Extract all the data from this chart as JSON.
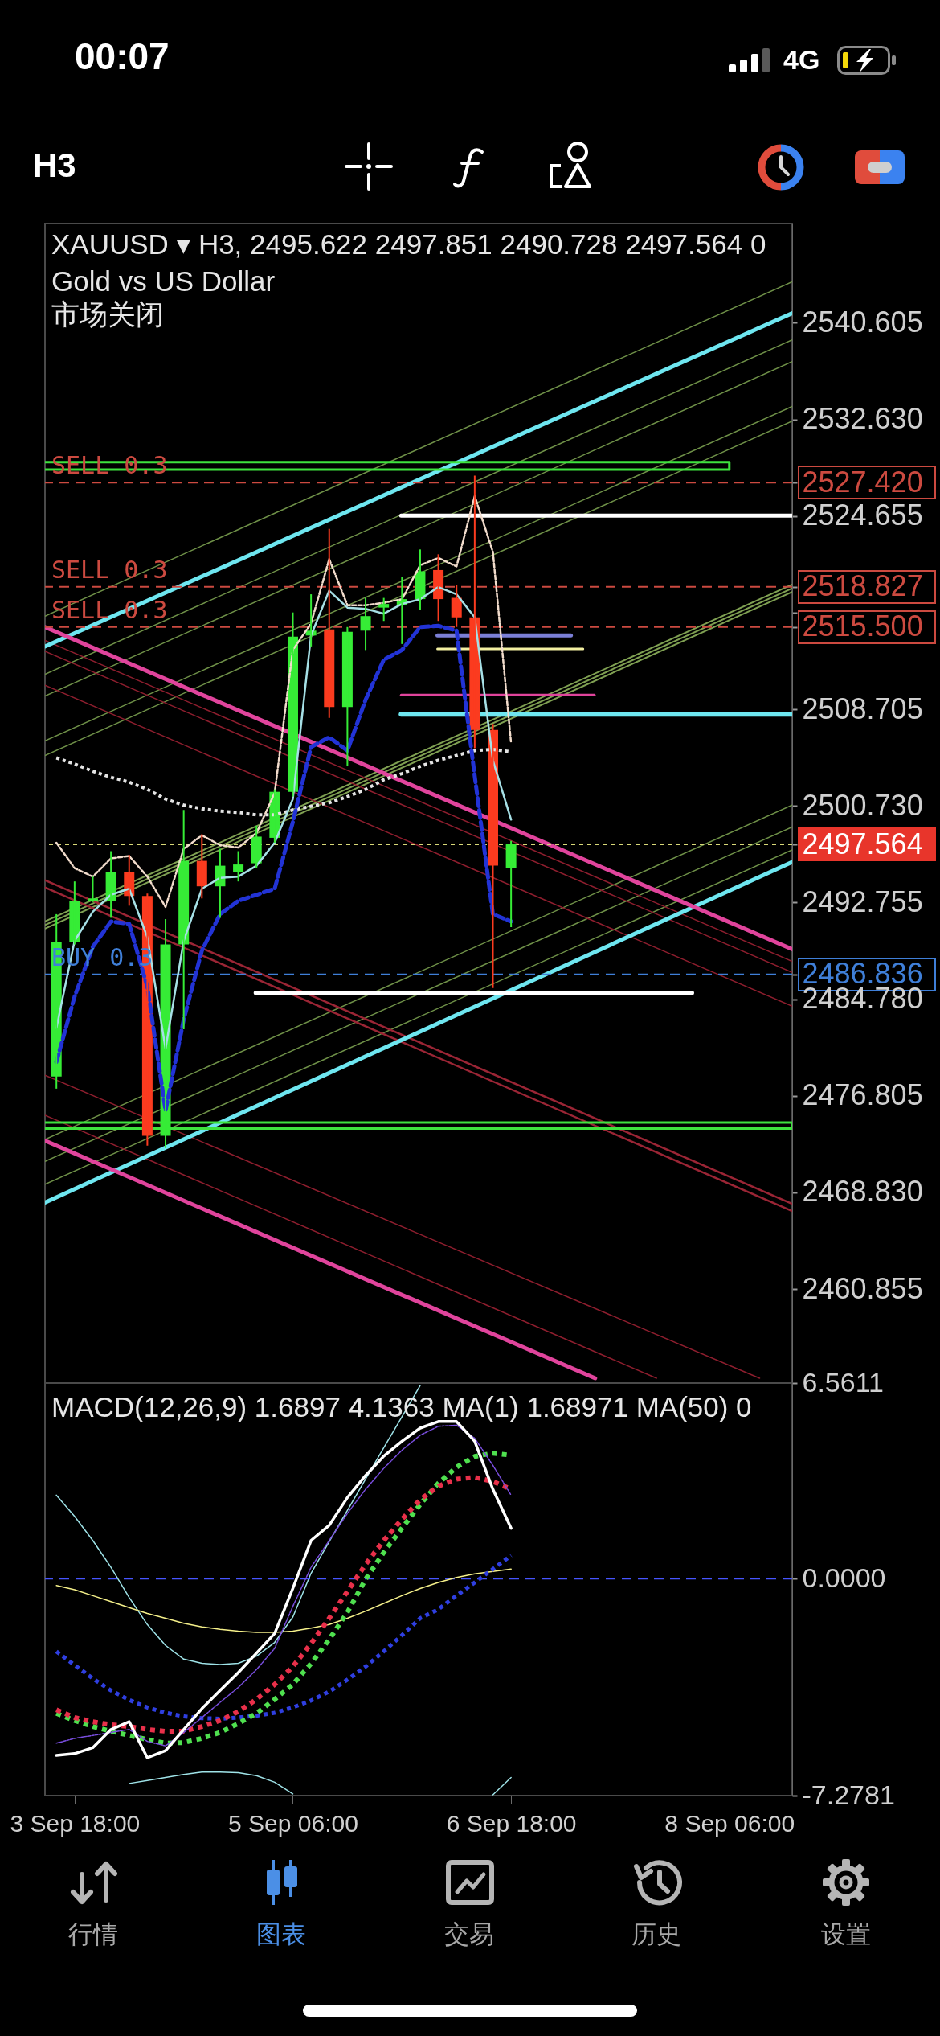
{
  "chart_data": [
    {
      "type": "candlestick",
      "title": "XAUUSD ▾ H3, 2495.622 2497.851 2490.728 2497.564 0",
      "subtitle": "Gold vs US Dollar",
      "annotations": [
        "市场关闭",
        "00:07",
        "4G",
        "H3",
        "行情",
        "图表",
        "交易",
        "历史",
        "设置"
      ],
      "x": [
        "--09-03T15:00",
        "--09-03T18:00",
        "--09-03T21:00",
        "--09-04T00:00",
        "--09-04T03:00",
        "--09-04T06:00",
        "--09-04T09:00",
        "--09-04T12:00",
        "--09-04T15:00",
        "--09-04T18:00",
        "--09-04T21:00",
        "--09-05T00:00",
        "--09-05T03:00",
        "--09-05T06:00",
        "--09-05T09:00",
        "--09-05T12:00",
        "--09-05T15:00",
        "--09-05T18:00",
        "--09-05T21:00",
        "--09-06T00:00",
        "--09-06T03:00",
        "--09-06T06:00",
        "--09-06T09:00",
        "--09-06T12:00",
        "--09-06T15:00",
        "--09-06T18:00"
      ],
      "ohlc": [
        [
          2478.4,
          2491.8,
          2477.4,
          2489.5
        ],
        [
          2489.5,
          2494.5,
          2489.3,
          2492.9
        ],
        [
          2492.9,
          2494.9,
          2492.8,
          2493.1
        ],
        [
          2492.9,
          2497.0,
          2491.5,
          2495.3
        ],
        [
          2495.3,
          2496.7,
          2492.5,
          2493.3
        ],
        [
          2493.3,
          2493.5,
          2472.7,
          2473.5
        ],
        [
          2473.5,
          2491.4,
          2472.5,
          2489.3
        ],
        [
          2489.3,
          2500.4,
          2482.3,
          2496.2
        ],
        [
          2496.2,
          2498.4,
          2493.1,
          2494.1
        ],
        [
          2494.1,
          2497.2,
          2491.5,
          2495.8
        ],
        [
          2495.3,
          2497.0,
          2494.5,
          2495.9
        ],
        [
          2496.0,
          2499.1,
          2495.6,
          2498.2
        ],
        [
          2498.1,
          2502.1,
          2497.7,
          2501.9
        ],
        [
          2501.9,
          2516.7,
          2501.5,
          2514.7
        ],
        [
          2514.8,
          2518.2,
          2513.9,
          2515.2
        ],
        [
          2515.3,
          2523.6,
          2508.0,
          2508.9
        ],
        [
          2508.9,
          2515.5,
          2504.0,
          2515.1
        ],
        [
          2515.2,
          2517.9,
          2513.6,
          2516.4
        ],
        [
          2517.1,
          2517.9,
          2516.0,
          2517.4
        ],
        [
          2517.3,
          2519.6,
          2514.1,
          2517.8
        ],
        [
          2517.8,
          2521.9,
          2516.9,
          2520.1
        ],
        [
          2520.2,
          2521.5,
          2516.0,
          2517.8
        ],
        [
          2517.9,
          2519.0,
          2515.5,
          2516.3
        ],
        [
          2516.3,
          2528.0,
          2505.5,
          2507.0
        ],
        [
          2507.0,
          2507.5,
          2485.7,
          2495.8
        ],
        [
          2495.622,
          2497.851,
          2490.728,
          2497.564
        ]
      ],
      "colors": [
        "#36ec36",
        "#36ec36",
        "#36ec36",
        "#36ec36",
        "#fb3b1f",
        "#fb3b1f",
        "#36ec36",
        "#36ec36",
        "#fb3b1f",
        "#36ec36",
        "#36ec36",
        "#36ec36",
        "#36ec36",
        "#36ec36",
        "#36ec36",
        "#fb3b1f",
        "#36ec36",
        "#36ec36",
        "#36ec36",
        "#36ec36",
        "#36ec36",
        "#fb3b1f",
        "#fb3b1f",
        "#fb3b1f",
        "#fb3b1f",
        "#36ec36"
      ],
      "series": [
        {
          "type": "line",
          "color": "#6f9148",
          "x": [
            "--09-03T13:07",
            "--09-08T16:22"
          ],
          "values": [
            2516.4,
            2544.0
          ]
        },
        {
          "type": "line",
          "color": "#6f9148",
          "x": [
            "--09-03T13:07",
            "--09-08T16:22"
          ],
          "values": [
            2511.6,
            2539.2
          ]
        },
        {
          "type": "line",
          "color": "#6f9148",
          "x": [
            "--09-03T13:07",
            "--09-08T16:22"
          ],
          "values": [
            2509.8,
            2537.4
          ]
        },
        {
          "type": "line",
          "color": "#6f9148",
          "x": [
            "--09-03T13:07",
            "--09-08T16:22"
          ],
          "values": [
            2506.1,
            2533.7
          ]
        },
        {
          "type": "line",
          "color": "#6f9148",
          "x": [
            "--09-03T13:07",
            "--09-08T16:22"
          ],
          "values": [
            2504.9,
            2532.5
          ]
        },
        {
          "type": "line",
          "color": "#7fa052",
          "x": [
            "--09-03T13:07",
            "--09-08T16:22"
          ],
          "values": [
            2491.2,
            2519.0
          ]
        },
        {
          "type": "line",
          "color": "#7fa052",
          "x": [
            "--09-03T13:07",
            "--09-08T16:22"
          ],
          "values": [
            2490.9,
            2518.7
          ]
        },
        {
          "type": "line",
          "color": "#7fa052",
          "x": [
            "--09-03T13:07",
            "--09-08T16:22"
          ],
          "values": [
            2490.6,
            2518.4
          ]
        },
        {
          "type": "line",
          "color": "#6f9148",
          "x": [
            "--09-03T13:07",
            "--09-08T16:22"
          ],
          "values": [
            2473.2,
            2500.8
          ]
        },
        {
          "type": "line",
          "color": "#6f9148",
          "x": [
            "--09-03T13:07",
            "--09-08T16:22"
          ],
          "values": [
            2471.4,
            2499.0
          ]
        },
        {
          "type": "line",
          "color": "#6f9148",
          "x": [
            "--09-03T13:07",
            "--09-08T16:22"
          ],
          "values": [
            2469.5,
            2497.1
          ]
        },
        {
          "type": "line",
          "color": "#8e1e2e",
          "x": [
            "--09-03T13:07",
            "--09-08T16:22"
          ],
          "values": [
            2514.4,
            2487.9
          ]
        },
        {
          "type": "line",
          "color": "#8e1e2e",
          "x": [
            "--09-03T13:07",
            "--09-08T16:22"
          ],
          "values": [
            2513.5,
            2487.0
          ]
        },
        {
          "type": "line",
          "color": "#8e1e2e",
          "x": [
            "--09-03T13:07",
            "--09-08T16:22"
          ],
          "values": [
            2510.7,
            2484.2
          ]
        },
        {
          "type": "line",
          "color": "#9b2535",
          "x": [
            "--09-03T13:07",
            "--09-08T16:22"
          ],
          "values": [
            2494.6,
            2467.9
          ]
        },
        {
          "type": "line",
          "color": "#9b2535",
          "x": [
            "--09-03T13:07",
            "--09-08T16:22"
          ],
          "values": [
            2494.0,
            2467.3
          ]
        },
        {
          "type": "line",
          "color": "#8e1e2e",
          "x": [
            "--09-03T13:07",
            "--09-08T11:00"
          ],
          "values": [
            2478.5,
            2453.5
          ]
        },
        {
          "type": "line",
          "color": "#8e1e2e",
          "x": [
            "--09-03T13:07",
            "--09-07T18:00"
          ],
          "values": [
            2475.2,
            2453.5
          ]
        },
        {
          "type": "line",
          "color": "#6ee6f0",
          "x": [
            "--09-03T13:07",
            "--09-08T16:22"
          ],
          "values": [
            2513.9,
            2541.4
          ]
        },
        {
          "type": "line",
          "color": "#6ee6f0",
          "x": [
            "--09-03T13:07",
            "--09-08T16:22"
          ],
          "values": [
            2468.0,
            2496.1
          ]
        },
        {
          "type": "line",
          "color": "#e0449c",
          "x": [
            "--09-03T13:07",
            "--09-08T16:22"
          ],
          "values": [
            2515.5,
            2488.9
          ]
        },
        {
          "type": "line",
          "color": "#e0449c",
          "x": [
            "--09-03T13:07",
            "--09-07T07:52"
          ],
          "values": [
            2473.1,
            2453.5
          ]
        },
        {
          "type": "line",
          "color": "#3ee23e",
          "x": [
            "--09-03T13:07",
            "--09-08T06:00",
            "--09-08T06:00",
            "--09-03T13:07"
          ],
          "values": [
            2529.1,
            2529.1,
            2528.5,
            2528.5
          ]
        },
        {
          "type": "line",
          "color": "#3ee23e",
          "x": [
            "--09-03T13:07",
            "--09-08T16:22",
            "--09-08T16:22",
            "--09-03T13:07"
          ],
          "values": [
            2474.6,
            2474.6,
            2474.1,
            2474.1
          ]
        },
        {
          "type": "line",
          "color": "#ffffff",
          "x": [
            "--09-05T23:52",
            "--09-08T16:22"
          ],
          "values": [
            2524.7,
            2524.7
          ]
        },
        {
          "type": "line",
          "color": "#ffffff",
          "x": [
            "--09-04T23:52",
            "--09-07T23:52"
          ],
          "values": [
            2485.3,
            2485.3
          ]
        },
        {
          "type": "line",
          "color": "#7b7fd6",
          "x": [
            "--09-06T05:52",
            "--09-07T03:52"
          ],
          "values": [
            2514.8,
            2514.8
          ]
        },
        {
          "type": "line",
          "color": "#f3f0a2",
          "x": [
            "--09-06T05:52",
            "--09-07T05:52"
          ],
          "values": [
            2513.7,
            2513.7
          ]
        },
        {
          "type": "line",
          "color": "#e0449c",
          "x": [
            "--09-05T23:52",
            "--09-07T07:45"
          ],
          "values": [
            2509.9,
            2509.9
          ]
        },
        {
          "type": "line",
          "color": "#6ee6f0",
          "x": [
            "--09-05T23:52",
            "--09-08T16:22"
          ],
          "values": [
            2508.3,
            2508.3
          ]
        },
        {
          "type": "line",
          "color": "#e4e4e4",
          "line_style": "dotted",
          "values": [
            2504.7,
            2504.2,
            2503.6,
            2503.1,
            2502.7,
            2502.1,
            2501.3,
            2500.8,
            2500.5,
            2500.3,
            2500.2,
            2500.0,
            2500.0,
            2500.4,
            2500.7,
            2501.0,
            2501.5,
            2502.1,
            2502.9,
            2503.4,
            2504.0,
            2504.5,
            2504.9,
            2505.3,
            2505.4,
            2505.2
          ]
        },
        {
          "type": "line",
          "color": "#f2dccc",
          "line_style": "dashed",
          "values": [
            2497.7,
            2495.6,
            2494.9,
            2496.4,
            2496.6,
            2494.9,
            2492.4,
            2497.2,
            2498.3,
            2497.5,
            2497.3,
            2498.5,
            2501.8,
            2513.6,
            2515.8,
            2521.1,
            2517.3,
            2517.3,
            2517.5,
            2517.8,
            2520.6,
            2521.2,
            2520.5,
            2526.3,
            2521.7,
            2505.9
          ]
        },
        {
          "type": "line",
          "color": "#a6e0e6",
          "values": [
            2482.4,
            2489.6,
            2492.0,
            2493.4,
            2493.9,
            2489.9,
            2480.7,
            2489.6,
            2493.9,
            2494.8,
            2494.9,
            2495.8,
            2497.7,
            2501.3,
            2514.8,
            2518.5,
            2517.1,
            2517.0,
            2516.6,
            2517.4,
            2517.8,
            2518.8,
            2518.2,
            2516.3,
            2504.5,
            2499.6
          ]
        },
        {
          "type": "line",
          "color": "#2233d6",
          "line_style": "dashed",
          "values": [
            2479.6,
            2485.0,
            2489.1,
            2491.2,
            2491.0,
            2485.8,
            2475.6,
            2483.1,
            2488.8,
            2491.8,
            2492.9,
            2493.4,
            2493.9,
            2499.4,
            2505.6,
            2506.4,
            2505.3,
            2509.5,
            2512.8,
            2513.6,
            2515.5,
            2515.6,
            2515.2,
            2503.2,
            2491.8,
            2491.2
          ]
        }
      ],
      "ref_lines": [
        {
          "axis": "y",
          "value": 2527.42,
          "label": "SELL 0.3",
          "color": "#cc4a40",
          "line_style": "dashed"
        },
        {
          "axis": "y",
          "value": 2518.827,
          "label": "SELL 0.3",
          "color": "#cc4a40",
          "line_style": "dashed"
        },
        {
          "axis": "y",
          "value": 2515.5,
          "label": "SELL 0.3",
          "color": "#cc4a40",
          "line_style": "dashed"
        },
        {
          "axis": "y",
          "value": 2497.564,
          "color": "#d8d878",
          "line_style": "dotted"
        },
        {
          "axis": "y",
          "value": 2486.836,
          "label": "BUY 0.3",
          "color": "#3f7fd8",
          "line_style": "dashed"
        }
      ],
      "xlim": [
        "--09-03T13:07",
        "--09-08T16:22"
      ],
      "ylim": [
        2453.1,
        2548.8
      ],
      "yticks": [
        2540.605,
        {
          "value": 2532.63,
          "label": "2532.630"
        },
        {
          "value": 2527.42,
          "label": "2527.420"
        },
        2524.655,
        2518.827,
        {
          "value": 2516.68,
          "label": null
        },
        {
          "value": 2515.5,
          "label": "2515.500"
        },
        2508.705,
        {
          "value": 2500.73,
          "label": "2500.730"
        },
        2497.564,
        2492.755,
        2486.836,
        {
          "value": 2484.78,
          "label": "2484.780"
        },
        2476.805,
        {
          "value": 2468.83,
          "label": "2468.830"
        },
        2460.855
      ],
      "tick_labels": "y"
    },
    {
      "type": "line",
      "title": "MACD(12,26,9) 1.6897 4.1363 MA(1) 1.68971 MA(50) 0",
      "x": [
        "--09-03T15:00",
        "--09-03T18:00",
        "--09-03T21:00",
        "--09-04T00:00",
        "--09-04T03:00",
        "--09-04T06:00",
        "--09-04T09:00",
        "--09-04T12:00",
        "--09-04T15:00",
        "--09-04T18:00",
        "--09-04T21:00",
        "--09-05T00:00",
        "--09-05T03:00",
        "--09-05T06:00",
        "--09-05T09:00",
        "--09-05T12:00",
        "--09-05T15:00",
        "--09-05T18:00",
        "--09-05T21:00",
        "--09-06T00:00",
        "--09-06T03:00",
        "--09-06T06:00",
        "--09-06T09:00",
        "--09-06T12:00",
        "--09-06T15:00",
        "--09-06T18:00"
      ],
      "series": [
        {
          "type": "line",
          "color": "#9fe3e8",
          "x": [
            "--09-03T15:00",
            "--09-03T18:00",
            "--09-03T21:00",
            "--09-04T00:00",
            "--09-04T03:00",
            "--09-04T06:00",
            "--09-04T09:00",
            "--09-04T12:00",
            "--09-04T15:00",
            "--09-04T18:00",
            "--09-04T21:00",
            "--09-05T00:00",
            "--09-05T03:00",
            "--09-05T06:00",
            "--09-05T09:00",
            "--09-05T12:00",
            "--09-05T15:00",
            "--09-05T18:00",
            "--09-05T21:00",
            "--09-06T00:00",
            "--09-06T03:00"
          ],
          "values": [
            2.8,
            2.09,
            1.28,
            0.38,
            -0.63,
            -1.54,
            -2.24,
            -2.7,
            -2.84,
            -2.88,
            -2.84,
            -2.6,
            -2.14,
            -1.29,
            0.18,
            1.24,
            2.29,
            3.34,
            4.39,
            5.43,
            6.48
          ]
        },
        {
          "type": "line",
          "color": "#9fe3e8",
          "x": [
            "--09-04T03:00",
            "--09-04T06:00",
            "--09-04T09:00",
            "--09-04T12:00",
            "--09-04T15:00",
            "--09-04T18:00",
            "--09-04T21:00",
            "--09-05T00:00",
            "--09-05T03:00",
            "--09-05T06:00"
          ],
          "values": [
            -6.87,
            -6.77,
            -6.67,
            -6.57,
            -6.49,
            -6.49,
            -6.51,
            -6.61,
            -6.83,
            -7.22
          ]
        },
        {
          "type": "line",
          "color": "#9fe3e8",
          "x": [
            "--09-06T15:00",
            "--09-06T18:00"
          ],
          "values": [
            -7.25,
            -6.67
          ]
        },
        {
          "type": "line",
          "color": "#f5f08a",
          "values": [
            -0.23,
            -0.37,
            -0.57,
            -0.77,
            -0.97,
            -1.17,
            -1.33,
            -1.5,
            -1.62,
            -1.7,
            -1.76,
            -1.8,
            -1.8,
            -1.76,
            -1.66,
            -1.54,
            -1.33,
            -1.09,
            -0.83,
            -0.57,
            -0.33,
            -0.13,
            0.04,
            0.16,
            0.24,
            0.32
          ]
        },
        {
          "type": "line",
          "color": "#2f3fe0",
          "line_style": "dotted",
          "values": [
            -2.44,
            -2.9,
            -3.35,
            -3.75,
            -4.07,
            -4.32,
            -4.5,
            -4.62,
            -4.68,
            -4.7,
            -4.66,
            -4.6,
            -4.5,
            -4.32,
            -4.09,
            -3.79,
            -3.39,
            -2.95,
            -2.44,
            -1.9,
            -1.33,
            -1.03,
            -0.57,
            -0.13,
            0.32,
            0.78
          ]
        },
        {
          "type": "line",
          "color": "#4fe04f",
          "line_style": "dotted",
          "values": [
            -4.52,
            -4.76,
            -4.96,
            -5.12,
            -5.26,
            -5.4,
            -5.52,
            -5.5,
            -5.36,
            -5.16,
            -4.86,
            -4.52,
            -4.05,
            -3.55,
            -2.85,
            -2.04,
            -1.13,
            -0.02,
            0.88,
            1.69,
            2.49,
            3.2,
            3.74,
            4.1,
            4.21,
            4.14
          ]
        },
        {
          "type": "line",
          "color": "#e8304a",
          "line_style": "dotted",
          "values": [
            -4.4,
            -4.66,
            -4.8,
            -4.9,
            -4.96,
            -5.06,
            -5.12,
            -5.12,
            -4.96,
            -4.76,
            -4.46,
            -4.05,
            -3.55,
            -2.95,
            -2.18,
            -1.33,
            -0.43,
            0.48,
            1.28,
            1.99,
            2.65,
            3.1,
            3.34,
            3.4,
            3.26,
            3.0
          ]
        },
        {
          "type": "line",
          "color": "#7a4ee0",
          "line_style": "dashed",
          "values": [
            -5.52,
            -5.36,
            -5.26,
            -5.16,
            -5.06,
            -5.46,
            -5.61,
            -5.16,
            -4.66,
            -4.15,
            -3.65,
            -3.05,
            -2.34,
            -0.93,
            0.38,
            1.28,
            2.19,
            3.0,
            3.7,
            4.31,
            4.81,
            5.11,
            5.15,
            4.71,
            3.8,
            2.8
          ]
        },
        {
          "type": "line",
          "color": "#ffffff",
          "values": [
            -5.93,
            -5.87,
            -5.67,
            -5.06,
            -4.8,
            -6.01,
            -5.77,
            -5.06,
            -4.36,
            -3.75,
            -3.15,
            -2.5,
            -1.84,
            -0.33,
            1.28,
            1.79,
            2.72,
            3.46,
            4.11,
            4.61,
            5.05,
            5.27,
            5.27,
            4.61,
            3.0,
            1.69
          ]
        }
      ],
      "ref_lines": [
        {
          "axis": "y",
          "value": 0,
          "color": "#4654ff",
          "line_style": "dashed"
        }
      ],
      "xlim": [
        "--09-03T13:07",
        "--09-08T16:22"
      ],
      "ylim": [
        -7.2781,
        6.5611
      ],
      "xticks": [
        {
          "value": "--09-03T18:00",
          "label": "3 Sep 18:00"
        },
        {
          "value": "--09-05T06:00",
          "label": "5 Sep 06:00"
        },
        {
          "value": "--09-06T18:00",
          "label": "6 Sep 18:00"
        },
        {
          "value": "--09-08T06:00",
          "label": "8 Sep 06:00"
        }
      ],
      "yticks": [
        -7.2781,
        {
          "value": 0,
          "label": "0.0000"
        },
        6.5611
      ]
    }
  ]
}
